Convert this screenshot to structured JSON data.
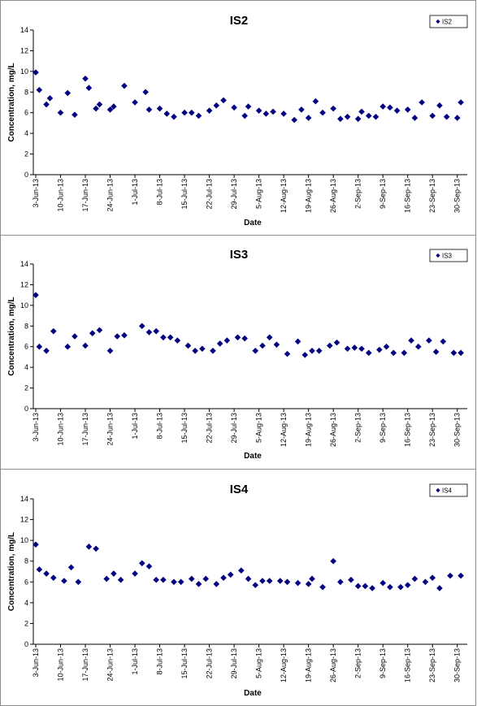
{
  "chart_data": [
    {
      "type": "scatter",
      "title": "IS2",
      "xlabel": "Date",
      "ylabel": "Concentration, mg/L",
      "ylim": [
        0,
        14
      ],
      "yticks": [
        0,
        2,
        4,
        6,
        8,
        10,
        12,
        14
      ],
      "xlim": [
        "2013-06-03",
        "2013-09-30"
      ],
      "xtick_labels": [
        "3-Jun-13",
        "10-Jun-13",
        "17-Jun-13",
        "24-Jun-13",
        "1-Jul-13",
        "8-Jul-13",
        "15-Jul-13",
        "22-Jul-13",
        "29-Jul-13",
        "5-Aug-13",
        "12-Aug-13",
        "19-Aug-13",
        "26-Aug-13",
        "2-Sep-13",
        "9-Sep-13",
        "16-Sep-13",
        "23-Sep-13",
        "30-Sep-13"
      ],
      "legend": "top-right",
      "color": "#000080",
      "series": [
        {
          "name": "IS2",
          "x": [
            "2013-06-03",
            "2013-06-04",
            "2013-06-06",
            "2013-06-07",
            "2013-06-10",
            "2013-06-12",
            "2013-06-14",
            "2013-06-17",
            "2013-06-18",
            "2013-06-20",
            "2013-06-21",
            "2013-06-24",
            "2013-06-25",
            "2013-06-28",
            "2013-07-01",
            "2013-07-04",
            "2013-07-05",
            "2013-07-08",
            "2013-07-10",
            "2013-07-12",
            "2013-07-15",
            "2013-07-17",
            "2013-07-19",
            "2013-07-22",
            "2013-07-24",
            "2013-07-26",
            "2013-07-29",
            "2013-08-01",
            "2013-08-02",
            "2013-08-05",
            "2013-08-07",
            "2013-08-09",
            "2013-08-12",
            "2013-08-15",
            "2013-08-17",
            "2013-08-19",
            "2013-08-21",
            "2013-08-23",
            "2013-08-26",
            "2013-08-28",
            "2013-08-30",
            "2013-09-02",
            "2013-09-03",
            "2013-09-05",
            "2013-09-07",
            "2013-09-09",
            "2013-09-11",
            "2013-09-13",
            "2013-09-16",
            "2013-09-18",
            "2013-09-20",
            "2013-09-23",
            "2013-09-25",
            "2013-09-27",
            "2013-09-30",
            "2013-10-01"
          ],
          "y": [
            9.9,
            8.2,
            6.8,
            7.4,
            6.0,
            7.9,
            5.8,
            9.3,
            8.4,
            6.4,
            6.8,
            6.3,
            6.6,
            8.6,
            7.0,
            8.0,
            6.3,
            6.4,
            5.9,
            5.6,
            6.0,
            6.0,
            5.7,
            6.2,
            6.7,
            7.2,
            6.5,
            5.7,
            6.6,
            6.2,
            5.9,
            6.1,
            5.9,
            5.3,
            6.3,
            5.5,
            7.1,
            6.0,
            6.4,
            5.4,
            5.6,
            5.4,
            6.1,
            5.7,
            5.6,
            6.6,
            6.5,
            6.2,
            6.3,
            5.5,
            7.0,
            5.7,
            6.7,
            5.6,
            5.5,
            7.0
          ]
        }
      ]
    },
    {
      "type": "scatter",
      "title": "IS3",
      "xlabel": "Date",
      "ylabel": "Concentration, mg/L",
      "ylim": [
        0,
        14
      ],
      "yticks": [
        0,
        2,
        4,
        6,
        8,
        10,
        12,
        14
      ],
      "xlim": [
        "2013-06-03",
        "2013-09-30"
      ],
      "xtick_labels": [
        "3-Jun-13",
        "10-Jun-13",
        "17-Jun-13",
        "24-Jun-13",
        "1-Jul-13",
        "8-Jul-13",
        "15-Jul-13",
        "22-Jul-13",
        "29-Jul-13",
        "5-Aug-13",
        "12-Aug-13",
        "19-Aug-13",
        "26-Aug-13",
        "2-Sep-13",
        "9-Sep-13",
        "16-Sep-13",
        "23-Sep-13",
        "30-Sep-13"
      ],
      "legend": "top-right",
      "color": "#000080",
      "series": [
        {
          "name": "IS3",
          "x": [
            "2013-06-03",
            "2013-06-04",
            "2013-06-06",
            "2013-06-08",
            "2013-06-12",
            "2013-06-14",
            "2013-06-17",
            "2013-06-19",
            "2013-06-21",
            "2013-06-24",
            "2013-06-26",
            "2013-06-28",
            "2013-07-03",
            "2013-07-05",
            "2013-07-07",
            "2013-07-09",
            "2013-07-11",
            "2013-07-13",
            "2013-07-16",
            "2013-07-18",
            "2013-07-20",
            "2013-07-23",
            "2013-07-25",
            "2013-07-27",
            "2013-07-30",
            "2013-08-01",
            "2013-08-04",
            "2013-08-06",
            "2013-08-08",
            "2013-08-10",
            "2013-08-13",
            "2013-08-16",
            "2013-08-18",
            "2013-08-20",
            "2013-08-22",
            "2013-08-25",
            "2013-08-27",
            "2013-08-30",
            "2013-09-01",
            "2013-09-03",
            "2013-09-05",
            "2013-09-08",
            "2013-09-10",
            "2013-09-12",
            "2013-09-15",
            "2013-09-17",
            "2013-09-19",
            "2013-09-22",
            "2013-09-24",
            "2013-09-26",
            "2013-09-29",
            "2013-10-01"
          ],
          "y": [
            11.0,
            6.0,
            5.6,
            7.5,
            6.0,
            7.0,
            6.1,
            7.3,
            7.6,
            5.6,
            7.0,
            7.1,
            8.0,
            7.4,
            7.5,
            6.9,
            6.9,
            6.6,
            6.1,
            5.6,
            5.8,
            5.6,
            6.3,
            6.6,
            6.9,
            6.8,
            5.6,
            6.1,
            6.9,
            6.2,
            5.3,
            6.5,
            5.2,
            5.6,
            5.6,
            6.1,
            6.4,
            5.8,
            5.9,
            5.8,
            5.4,
            5.7,
            6.0,
            5.4,
            5.4,
            6.6,
            6.0,
            6.6,
            5.5,
            6.5,
            5.4,
            5.4
          ]
        }
      ]
    },
    {
      "type": "scatter",
      "title": "IS4",
      "xlabel": "Date",
      "ylabel": "Concentration, mg/L",
      "ylim": [
        0,
        14
      ],
      "yticks": [
        0,
        2,
        4,
        6,
        8,
        10,
        12,
        14
      ],
      "xlim": [
        "2013-06-03",
        "2013-09-30"
      ],
      "xtick_labels": [
        "3-Jun-13",
        "10-Jun-13",
        "17-Jun-13",
        "24-Jun-13",
        "1-Jul-13",
        "8-Jul-13",
        "15-Jul-13",
        "22-Jul-13",
        "29-Jul-13",
        "5-Aug-13",
        "12-Aug-13",
        "19-Aug-13",
        "26-Aug-13",
        "2-Sep-13",
        "9-Sep-13",
        "16-Sep-13",
        "23-Sep-13",
        "30-Sep-13"
      ],
      "legend": "top-right",
      "color": "#000080",
      "series": [
        {
          "name": "IS4",
          "x": [
            "2013-06-03",
            "2013-06-04",
            "2013-06-06",
            "2013-06-08",
            "2013-06-11",
            "2013-06-13",
            "2013-06-15",
            "2013-06-18",
            "2013-06-20",
            "2013-06-23",
            "2013-06-25",
            "2013-06-27",
            "2013-07-01",
            "2013-07-03",
            "2013-07-05",
            "2013-07-07",
            "2013-07-09",
            "2013-07-12",
            "2013-07-14",
            "2013-07-17",
            "2013-07-19",
            "2013-07-21",
            "2013-07-24",
            "2013-07-26",
            "2013-07-28",
            "2013-07-31",
            "2013-08-02",
            "2013-08-04",
            "2013-08-06",
            "2013-08-08",
            "2013-08-11",
            "2013-08-13",
            "2013-08-16",
            "2013-08-19",
            "2013-08-20",
            "2013-08-23",
            "2013-08-26",
            "2013-08-28",
            "2013-08-31",
            "2013-09-02",
            "2013-09-04",
            "2013-09-06",
            "2013-09-09",
            "2013-09-11",
            "2013-09-14",
            "2013-09-16",
            "2013-09-18",
            "2013-09-21",
            "2013-09-23",
            "2013-09-25",
            "2013-09-28",
            "2013-10-01"
          ],
          "y": [
            9.6,
            7.2,
            6.8,
            6.4,
            6.1,
            7.4,
            6.0,
            9.4,
            9.2,
            6.3,
            6.8,
            6.2,
            6.8,
            7.8,
            7.5,
            6.2,
            6.2,
            6.0,
            6.0,
            6.3,
            5.8,
            6.3,
            5.8,
            6.4,
            6.7,
            7.1,
            6.3,
            5.7,
            6.1,
            6.1,
            6.1,
            6.0,
            5.9,
            5.8,
            6.3,
            5.5,
            8.0,
            6.0,
            6.2,
            5.6,
            5.6,
            5.4,
            5.9,
            5.5,
            5.5,
            5.7,
            6.3,
            6.0,
            6.4,
            5.4,
            6.6,
            6.6
          ]
        }
      ]
    }
  ]
}
